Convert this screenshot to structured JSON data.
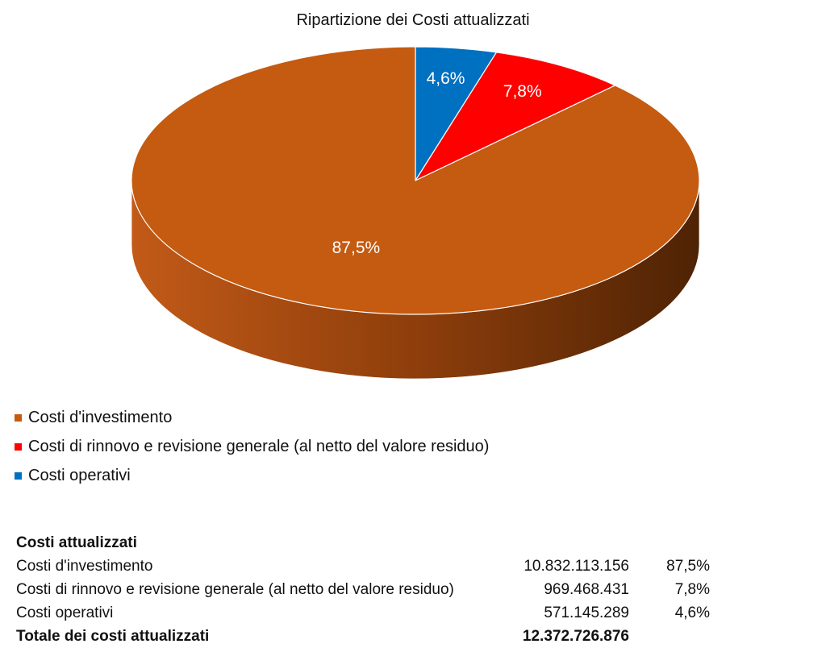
{
  "chart_data": {
    "type": "pie",
    "title": "Ripartizione dei Costi attualizzati",
    "categories": [
      "Costi d'investimento",
      "Costi di rinnovo e revisione generale (al netto del valore residuo)",
      "Costi operativi"
    ],
    "values": [
      87.5,
      7.8,
      4.6
    ],
    "data_labels": [
      "87,5%",
      "7,8%",
      "4,6%"
    ],
    "colors": [
      "#C55A11",
      "#FF0000",
      "#0070C0"
    ],
    "side_colors": [
      "#9A4510",
      "#B00000",
      "#00508A"
    ],
    "three_d": true,
    "legend_position": "bottom-left"
  },
  "table": {
    "heading": "Costi attualizzati",
    "rows": [
      {
        "label": "Costi d'investimento",
        "amount": "10.832.113.156",
        "pct": "87,5%"
      },
      {
        "label": "Costi di rinnovo e revisione generale (al netto del valore residuo)",
        "amount": "969.468.431",
        "pct": "7,8%"
      },
      {
        "label": "Costi operativi",
        "amount": "571.145.289",
        "pct": "4,6%"
      }
    ],
    "total": {
      "label": "Totale dei costi attualizzati",
      "amount": "12.372.726.876"
    }
  }
}
